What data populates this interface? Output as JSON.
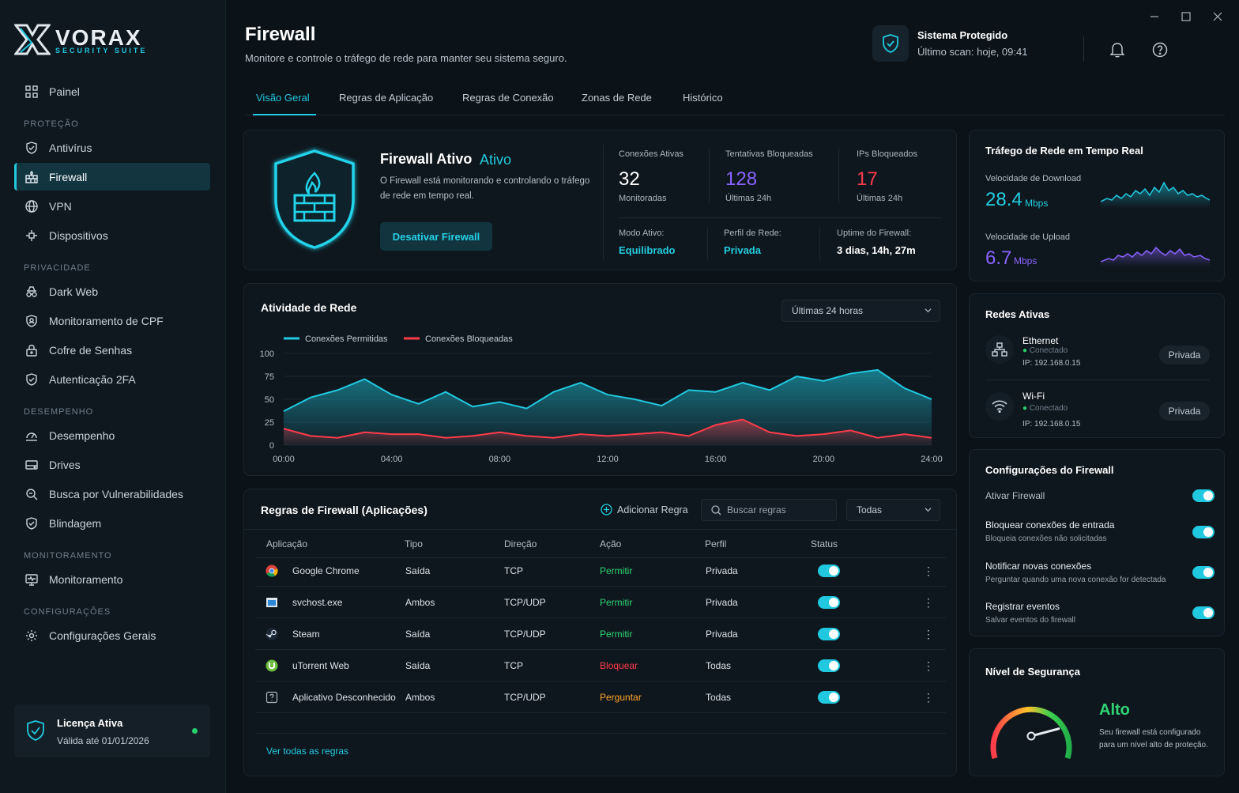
{
  "app": {
    "brand": "VORAX",
    "brand_sub": "SECURITY SUITE"
  },
  "sidebar": {
    "painel": "Painel",
    "sec_protecao": "PROTEÇÃO",
    "antivirus": "Antivírus",
    "firewall": "Firewall",
    "vpn": "VPN",
    "dispositivos": "Dispositivos",
    "sec_privacidade": "PRIVACIDADE",
    "darkweb": "Dark Web",
    "cpf": "Monitoramento de CPF",
    "cofre": "Cofre de Senhas",
    "auth2fa": "Autenticação 2FA",
    "sec_desempenho": "DESEMPENHO",
    "desempenho": "Desempenho",
    "drives": "Drives",
    "vuln": "Busca por Vulnerabilidades",
    "blindagem": "Blindagem",
    "sec_monitoramento": "MONITORAMENTO",
    "monitoramento": "Monitoramento",
    "sec_config": "CONFIGURAÇÕES",
    "config_gerais": "Configurações Gerais",
    "license_title": "Licença Ativa",
    "license_valid": "Válida até 01/01/2026"
  },
  "header": {
    "title": "Firewall",
    "subtitle": "Monitore e controle o tráfego de rede para manter seu sistema seguro.",
    "status_title": "Sistema Protegido",
    "status_scan": "Último scan: hoje, 09:41"
  },
  "tabs": [
    "Visão Geral",
    "Regras de Aplicação",
    "Regras de Conexão",
    "Zonas de Rede",
    "Histórico"
  ],
  "overview": {
    "title": "Firewall Ativo",
    "state": "Ativo",
    "desc_line1": "O Firewall está monitorando e controlando o tráfego",
    "desc_line2": "de rede em tempo real.",
    "button": "Desativar Firewall",
    "kpis": [
      {
        "label": "Conexões Ativas",
        "value": "32",
        "sub": "Monitoradas"
      },
      {
        "label": "Tentativas Bloqueadas",
        "value": "128",
        "sub": "Últimas 24h"
      },
      {
        "label": "IPs Bloqueados",
        "value": "17",
        "sub": "Últimas 24h"
      }
    ],
    "modo_label": "Modo Ativo:",
    "modo_value": "Equilibrado",
    "perfil_label": "Perfil de Rede:",
    "perfil_value": "Privada",
    "uptime_label": "Uptime do Firewall:",
    "uptime_value": "3 dias, 14h, 27m"
  },
  "activity": {
    "title": "Atividade de Rede",
    "range": "Últimas 24 horas"
  },
  "chart_data": {
    "type": "area",
    "title": "Atividade de Rede",
    "x": [
      "00:00",
      "01:00",
      "02:00",
      "03:00",
      "04:00",
      "05:00",
      "06:00",
      "07:00",
      "08:00",
      "09:00",
      "10:00",
      "11:00",
      "12:00",
      "13:00",
      "14:00",
      "15:00",
      "16:00",
      "17:00",
      "18:00",
      "19:00",
      "20:00",
      "21:00",
      "22:00",
      "23:00",
      "24:00"
    ],
    "xticks": [
      "00:00",
      "04:00",
      "08:00",
      "12:00",
      "16:00",
      "20:00",
      "24:00"
    ],
    "yticks": [
      "0",
      "25",
      "50",
      "75",
      "100"
    ],
    "ylim": [
      0,
      100
    ],
    "legend_position": "top-left",
    "grid": true,
    "series": [
      {
        "name": "Conexões Permitidas",
        "color": "#20c9e0",
        "values": [
          37,
          52,
          60,
          72,
          55,
          45,
          58,
          42,
          47,
          40,
          58,
          68,
          55,
          50,
          43,
          60,
          58,
          68,
          60,
          75,
          70,
          78,
          82,
          62,
          50
        ]
      },
      {
        "name": "Conexões Bloqueadas",
        "color": "#ff3b4a",
        "values": [
          18,
          10,
          8,
          14,
          12,
          12,
          8,
          10,
          14,
          10,
          8,
          12,
          10,
          12,
          14,
          10,
          22,
          28,
          14,
          10,
          12,
          16,
          8,
          12,
          8
        ]
      }
    ]
  },
  "rules": {
    "title": "Regras de Firewall (Aplicações)",
    "add": "Adicionar Regra",
    "search_placeholder": "Buscar regras",
    "filter": "Todas",
    "columns": [
      "Aplicação",
      "Tipo",
      "Direção",
      "Ação",
      "Perfil",
      "Status"
    ],
    "rows": [
      {
        "app": "Google Chrome",
        "tipo": "Saída",
        "dir": "TCP",
        "acao": "Permitir",
        "perfil": "Privada",
        "icon": "chrome-icon"
      },
      {
        "app": "svchost.exe",
        "tipo": "Ambos",
        "dir": "TCP/UDP",
        "acao": "Permitir",
        "perfil": "Privada",
        "icon": "window-icon"
      },
      {
        "app": "Steam",
        "tipo": "Saída",
        "dir": "TCP/UDP",
        "acao": "Permitir",
        "perfil": "Privada",
        "icon": "steam-icon"
      },
      {
        "app": "uTorrent Web",
        "tipo": "Saída",
        "dir": "TCP",
        "acao": "Bloquear",
        "perfil": "Todas",
        "icon": "utorrent-icon"
      },
      {
        "app": "Aplicativo Desconhecido",
        "tipo": "Ambos",
        "dir": "TCP/UDP",
        "acao": "Perguntar",
        "perfil": "Todas",
        "icon": "unknown-app-icon"
      }
    ],
    "view_all": "Ver todas as regras"
  },
  "traffic": {
    "title": "Tráfego de Rede em Tempo Real",
    "download_label": "Velocidade de Download",
    "download_value": "28.4",
    "download_unit": "Mbps",
    "upload_label": "Velocidade de Upload",
    "upload_value": "6.7",
    "upload_unit": "Mbps"
  },
  "networks": {
    "title": "Redes Ativas",
    "items": [
      {
        "name": "Ethernet",
        "status": "Conectado",
        "ip": "IP: 192.168.0.15",
        "profile": "Privada"
      },
      {
        "name": "Wi-Fi",
        "status": "Conectado",
        "ip": "IP: 192.168.0.15",
        "profile": "Privada"
      }
    ]
  },
  "settings": {
    "title": "Configurações do Firewall",
    "items": [
      {
        "title": "Ativar Firewall",
        "sub": ""
      },
      {
        "title": "Bloquear conexões de entrada",
        "sub": "Bloqueia conexões não solicitadas"
      },
      {
        "title": "Notificar novas conexões",
        "sub": "Perguntar quando uma nova conexão for detectada"
      },
      {
        "title": "Registrar eventos",
        "sub": "Salvar eventos do firewall"
      }
    ]
  },
  "security": {
    "title": "Nível de Segurança",
    "level": "Alto",
    "level_fraction": 0.8,
    "desc_line1": "Seu firewall está configurado",
    "desc_line2": "para um nível alto de proteção."
  }
}
